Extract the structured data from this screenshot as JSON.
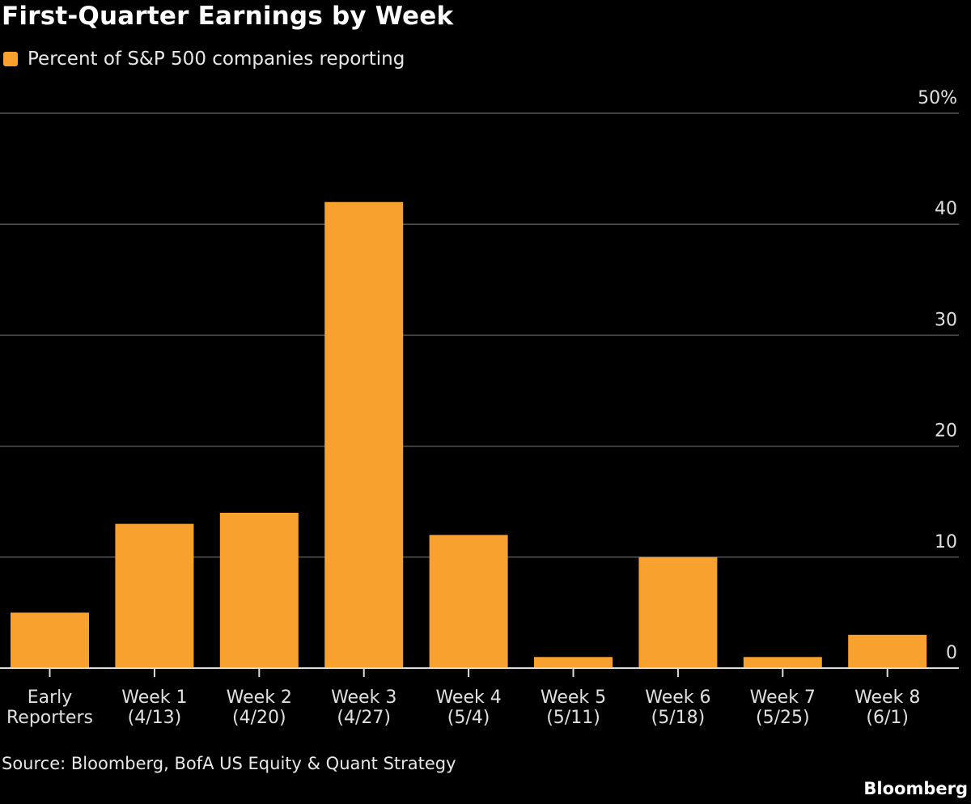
{
  "chart_data": {
    "type": "bar",
    "title": "First-Quarter Earnings by Week",
    "legend": [
      {
        "name": "Percent of S&P 500 companies reporting",
        "color": "#F9A12E"
      }
    ],
    "categories": [
      [
        "Early",
        "Reporters"
      ],
      [
        "Week 1",
        "(4/13)"
      ],
      [
        "Week 2",
        "(4/20)"
      ],
      [
        "Week 3",
        "(4/27)"
      ],
      [
        "Week 4",
        "(5/4)"
      ],
      [
        "Week 5",
        "(5/11)"
      ],
      [
        "Week 6",
        "(5/18)"
      ],
      [
        "Week 7",
        "(5/25)"
      ],
      [
        "Week 8",
        "(6/1)"
      ]
    ],
    "series": [
      {
        "name": "Percent of S&P 500 companies reporting",
        "values": [
          5,
          13,
          14,
          42,
          12,
          1,
          10,
          1,
          3
        ]
      }
    ],
    "ylim": [
      0,
      50
    ],
    "yticks": [
      0,
      10,
      20,
      30,
      40,
      50
    ],
    "ytick_labels": [
      "0",
      "10",
      "20",
      "30",
      "40",
      "50%"
    ],
    "y_axis_position": "right",
    "grid": true,
    "legend_position": "top-left",
    "source": "Source: Bloomberg, BofA US Equity & Quant Strategy",
    "brand": "Bloomberg"
  }
}
